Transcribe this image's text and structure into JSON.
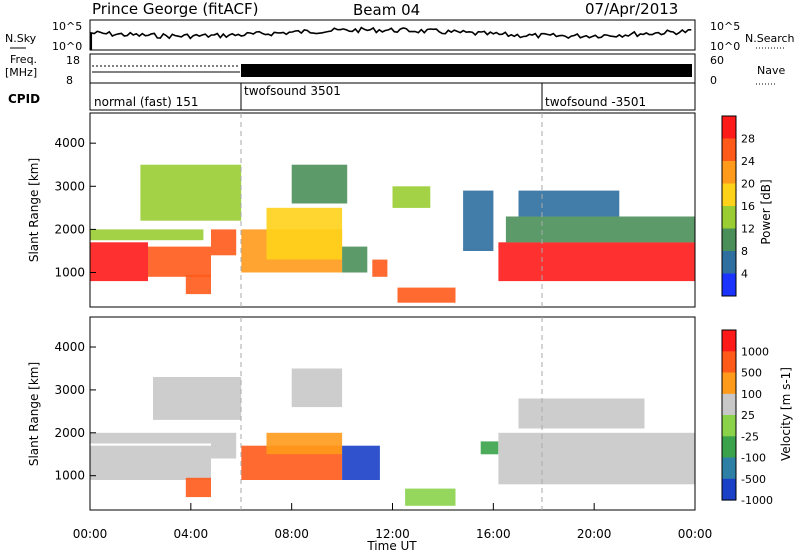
{
  "header": {
    "station": "Prince George (fitACF)",
    "beam": "Beam 04",
    "date": "07/Apr/2013"
  },
  "top_panels": {
    "nsky_label": "N.Sky",
    "nsky_ticks": [
      "10^5",
      "10^0"
    ],
    "nsearch_label": "N.Search",
    "nsearch_ticks": [
      "10^5",
      "10^0"
    ],
    "freq_label_line1": "Freq.",
    "freq_label_line2": "[MHz]",
    "freq_ticks": [
      "18",
      "8"
    ],
    "nave_label": "Nave",
    "nave_ticks": [
      "60",
      "0"
    ],
    "cpid_label": "CPID",
    "cpid_segments": [
      {
        "label": "normal (fast) 151",
        "start_hour": 0,
        "end_hour": 6
      },
      {
        "label": "twofsound 3501",
        "start_hour": 6,
        "end_hour": 18
      },
      {
        "label": "twofsound -3501",
        "start_hour": 18,
        "end_hour": 24
      }
    ]
  },
  "chart_data": [
    {
      "type": "heatmap",
      "name": "power",
      "ylabel": "Slant Range [km]",
      "yticks": [
        "1000",
        "2000",
        "3000",
        "4000"
      ],
      "ylim": [
        200,
        4700
      ],
      "colorbar_label": "Power [dB]",
      "colorbar_ticks": [
        "4",
        "8",
        "12",
        "16",
        "20",
        "24",
        "28"
      ],
      "colorbar_colors": [
        "#1a33ff",
        "#2e6fa0",
        "#4a8f5a",
        "#9acd32",
        "#ffd21a",
        "#ff9a1a",
        "#ff5a1a",
        "#ff1a1a"
      ],
      "regions": [
        {
          "h0": 0.0,
          "h1": 2.3,
          "r0": 800,
          "r1": 1700,
          "level": 7
        },
        {
          "h0": 2.3,
          "h1": 4.8,
          "r0": 900,
          "r1": 1600,
          "level": 6
        },
        {
          "h0": 0.0,
          "h1": 4.5,
          "r0": 1750,
          "r1": 2000,
          "level": 3
        },
        {
          "h0": 4.8,
          "h1": 5.8,
          "r0": 1400,
          "r1": 2000,
          "level": 6
        },
        {
          "h0": 3.8,
          "h1": 4.8,
          "r0": 500,
          "r1": 950,
          "level": 6
        },
        {
          "h0": 6.0,
          "h1": 10.0,
          "r0": 1000,
          "r1": 2000,
          "level": 5
        },
        {
          "h0": 7.0,
          "h1": 10.0,
          "r0": 1300,
          "r1": 2500,
          "level": 4
        },
        {
          "h0": 10.0,
          "h1": 11.0,
          "r0": 1000,
          "r1": 1600,
          "level": 2
        },
        {
          "h0": 11.2,
          "h1": 11.8,
          "r0": 900,
          "r1": 1300,
          "level": 6
        },
        {
          "h0": 12.2,
          "h1": 14.5,
          "r0": 300,
          "r1": 650,
          "level": 6
        },
        {
          "h0": 2.0,
          "h1": 6.0,
          "r0": 2200,
          "r1": 3500,
          "level": 3
        },
        {
          "h0": 8.0,
          "h1": 10.2,
          "r0": 2600,
          "r1": 3500,
          "level": 2
        },
        {
          "h0": 12.0,
          "h1": 13.5,
          "r0": 2500,
          "r1": 3000,
          "level": 3
        },
        {
          "h0": 14.8,
          "h1": 16.0,
          "r0": 1500,
          "r1": 2900,
          "level": 1
        },
        {
          "h0": 16.2,
          "h1": 24.0,
          "r0": 800,
          "r1": 1700,
          "level": 7
        },
        {
          "h0": 16.5,
          "h1": 24.0,
          "r0": 1700,
          "r1": 2300,
          "level": 2
        },
        {
          "h0": 17.0,
          "h1": 21.0,
          "r0": 2300,
          "r1": 2900,
          "level": 1
        }
      ]
    },
    {
      "type": "heatmap",
      "name": "velocity",
      "ylabel": "Slant Range [km]",
      "yticks": [
        "1000",
        "2000",
        "3000",
        "4000"
      ],
      "ylim": [
        200,
        4700
      ],
      "colorbar_label": "Velocity [m s-1]",
      "colorbar_ticks": [
        "1000",
        "500",
        "100",
        "25",
        "-25",
        "-100",
        "-500",
        "-1000"
      ],
      "colorbar_colors": [
        "#1a40c8",
        "#2e7fa6",
        "#3aa24a",
        "#8ad24a",
        "#c8c8c8",
        "#ff9a1a",
        "#ff5a1a",
        "#ff1a1a"
      ],
      "regions": [
        {
          "h0": 0.0,
          "h1": 4.8,
          "r0": 900,
          "r1": 1700,
          "level": 4
        },
        {
          "h0": 0.0,
          "h1": 4.8,
          "r0": 1750,
          "r1": 2000,
          "level": 4
        },
        {
          "h0": 4.8,
          "h1": 5.8,
          "r0": 1400,
          "r1": 2000,
          "level": 4
        },
        {
          "h0": 3.8,
          "h1": 4.8,
          "r0": 500,
          "r1": 950,
          "level": 6
        },
        {
          "h0": 6.0,
          "h1": 10.0,
          "r0": 900,
          "r1": 1700,
          "level": 6
        },
        {
          "h0": 7.0,
          "h1": 10.0,
          "r0": 1500,
          "r1": 2000,
          "level": 5
        },
        {
          "h0": 10.0,
          "h1": 11.5,
          "r0": 900,
          "r1": 1700,
          "level": 0
        },
        {
          "h0": 12.5,
          "h1": 14.5,
          "r0": 300,
          "r1": 700,
          "level": 3
        },
        {
          "h0": 15.5,
          "h1": 16.2,
          "r0": 1500,
          "r1": 1800,
          "level": 2
        },
        {
          "h0": 16.2,
          "h1": 24.0,
          "r0": 800,
          "r1": 2000,
          "level": 4
        },
        {
          "h0": 17.0,
          "h1": 22.0,
          "r0": 2100,
          "r1": 2800,
          "level": 4
        },
        {
          "h0": 8.0,
          "h1": 10.0,
          "r0": 2600,
          "r1": 3500,
          "level": 4
        },
        {
          "h0": 2.5,
          "h1": 6.0,
          "r0": 2300,
          "r1": 3300,
          "level": 4
        }
      ]
    }
  ],
  "time_axis": {
    "ticks": [
      "00:00",
      "04:00",
      "08:00",
      "12:00",
      "16:00",
      "20:00",
      "00:00"
    ],
    "label": "Time UT",
    "range_hours": [
      0,
      24
    ]
  }
}
